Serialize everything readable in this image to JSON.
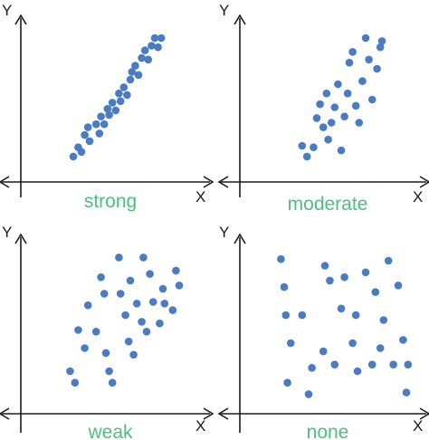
{
  "style": {
    "point_color": "#4a7cc4",
    "caption_color": "#4cc07f",
    "axis_color": "#1a1a1a"
  },
  "chart_data": [
    {
      "type": "scatter",
      "caption": "strong",
      "xlabel": "X",
      "ylabel": "Y",
      "xlim": [
        0,
        10
      ],
      "ylim": [
        0,
        10
      ],
      "x": [
        2.0,
        2.3,
        2.5,
        2.7,
        2.9,
        3.0,
        3.4,
        3.6,
        3.7,
        3.9,
        4.1,
        4.2,
        4.4,
        4.6,
        4.8,
        4.9,
        5.1,
        5.3,
        5.5,
        5.6,
        5.8,
        6.0,
        6.2,
        6.4,
        6.6,
        6.8,
        7.0,
        7.2,
        7.4
      ],
      "y": [
        1.3,
        1.9,
        1.6,
        2.7,
        3.2,
        2.3,
        3.4,
        2.8,
        3.9,
        3.4,
        4.4,
        4.0,
        4.8,
        4.3,
        5.4,
        4.9,
        5.8,
        5.3,
        6.3,
        6.8,
        7.2,
        6.6,
        7.7,
        8.2,
        7.6,
        8.5,
        9.0,
        8.4,
        9.0
      ]
    },
    {
      "type": "scatter",
      "caption": "moderate",
      "xlabel": "X",
      "ylabel": "Y",
      "xlim": [
        0,
        10
      ],
      "ylim": [
        0,
        10
      ],
      "x": [
        2.6,
        2.9,
        3.3,
        3.5,
        3.7,
        3.9,
        4.1,
        4.2,
        4.4,
        4.6,
        4.8,
        5.0,
        5.2,
        5.4,
        5.5,
        5.7,
        5.9,
        6.1,
        6.3,
        6.5,
        6.7,
        6.9,
        7.2,
        7.4,
        7.5
      ],
      "y": [
        2.0,
        1.3,
        1.9,
        3.8,
        4.7,
        3.2,
        5.4,
        2.4,
        3.5,
        4.5,
        6.0,
        1.7,
        3.9,
        5.4,
        7.4,
        8.1,
        4.6,
        3.5,
        6.2,
        9.0,
        7.6,
        5.0,
        7.0,
        8.4,
        8.8
      ]
    },
    {
      "type": "scatter",
      "caption": "weak",
      "xlabel": "X",
      "ylabel": "Y",
      "xlim": [
        0,
        10
      ],
      "ylim": [
        0,
        10
      ],
      "x": [
        1.8,
        2.1,
        2.3,
        2.7,
        2.9,
        3.4,
        3.7,
        3.9,
        4.0,
        4.2,
        4.4,
        4.8,
        4.9,
        5.2,
        5.4,
        5.5,
        5.7,
        5.9,
        6.2,
        6.3,
        6.5,
        6.7,
        6.9,
        7.3,
        7.5,
        7.6,
        8.1,
        8.3,
        8.5
      ],
      "y": [
        2.2,
        1.5,
        4.7,
        3.6,
        6.2,
        4.6,
        7.9,
        6.9,
        3.3,
        2.2,
        1.5,
        9.1,
        6.9,
        5.6,
        4.0,
        7.7,
        3.2,
        6.3,
        5.2,
        9.1,
        4.6,
        8.1,
        6.4,
        5.1,
        7.2,
        6.3,
        5.9,
        8.3,
        7.4
      ]
    },
    {
      "type": "scatter",
      "caption": "none",
      "xlabel": "X",
      "ylabel": "Y",
      "xlim": [
        0,
        10
      ],
      "ylim": [
        0,
        10
      ],
      "x": [
        1.3,
        1.5,
        1.6,
        1.7,
        1.9,
        2.6,
        3.0,
        3.2,
        3.9,
        4.0,
        4.3,
        4.6,
        5.0,
        5.2,
        5.7,
        5.9,
        6.0,
        6.5,
        6.9,
        7.1,
        7.4,
        7.6,
        7.9,
        8.2,
        8.5,
        8.8,
        9.0,
        9.1
      ],
      "y": [
        9.0,
        7.3,
        5.6,
        1.5,
        3.9,
        5.6,
        0.8,
        2.4,
        3.4,
        8.6,
        7.7,
        2.6,
        6.0,
        7.9,
        3.9,
        5.6,
        2.2,
        8.2,
        2.6,
        7.0,
        3.6,
        5.3,
        8.9,
        2.6,
        7.4,
        4.1,
        0.9,
        2.6
      ]
    }
  ]
}
